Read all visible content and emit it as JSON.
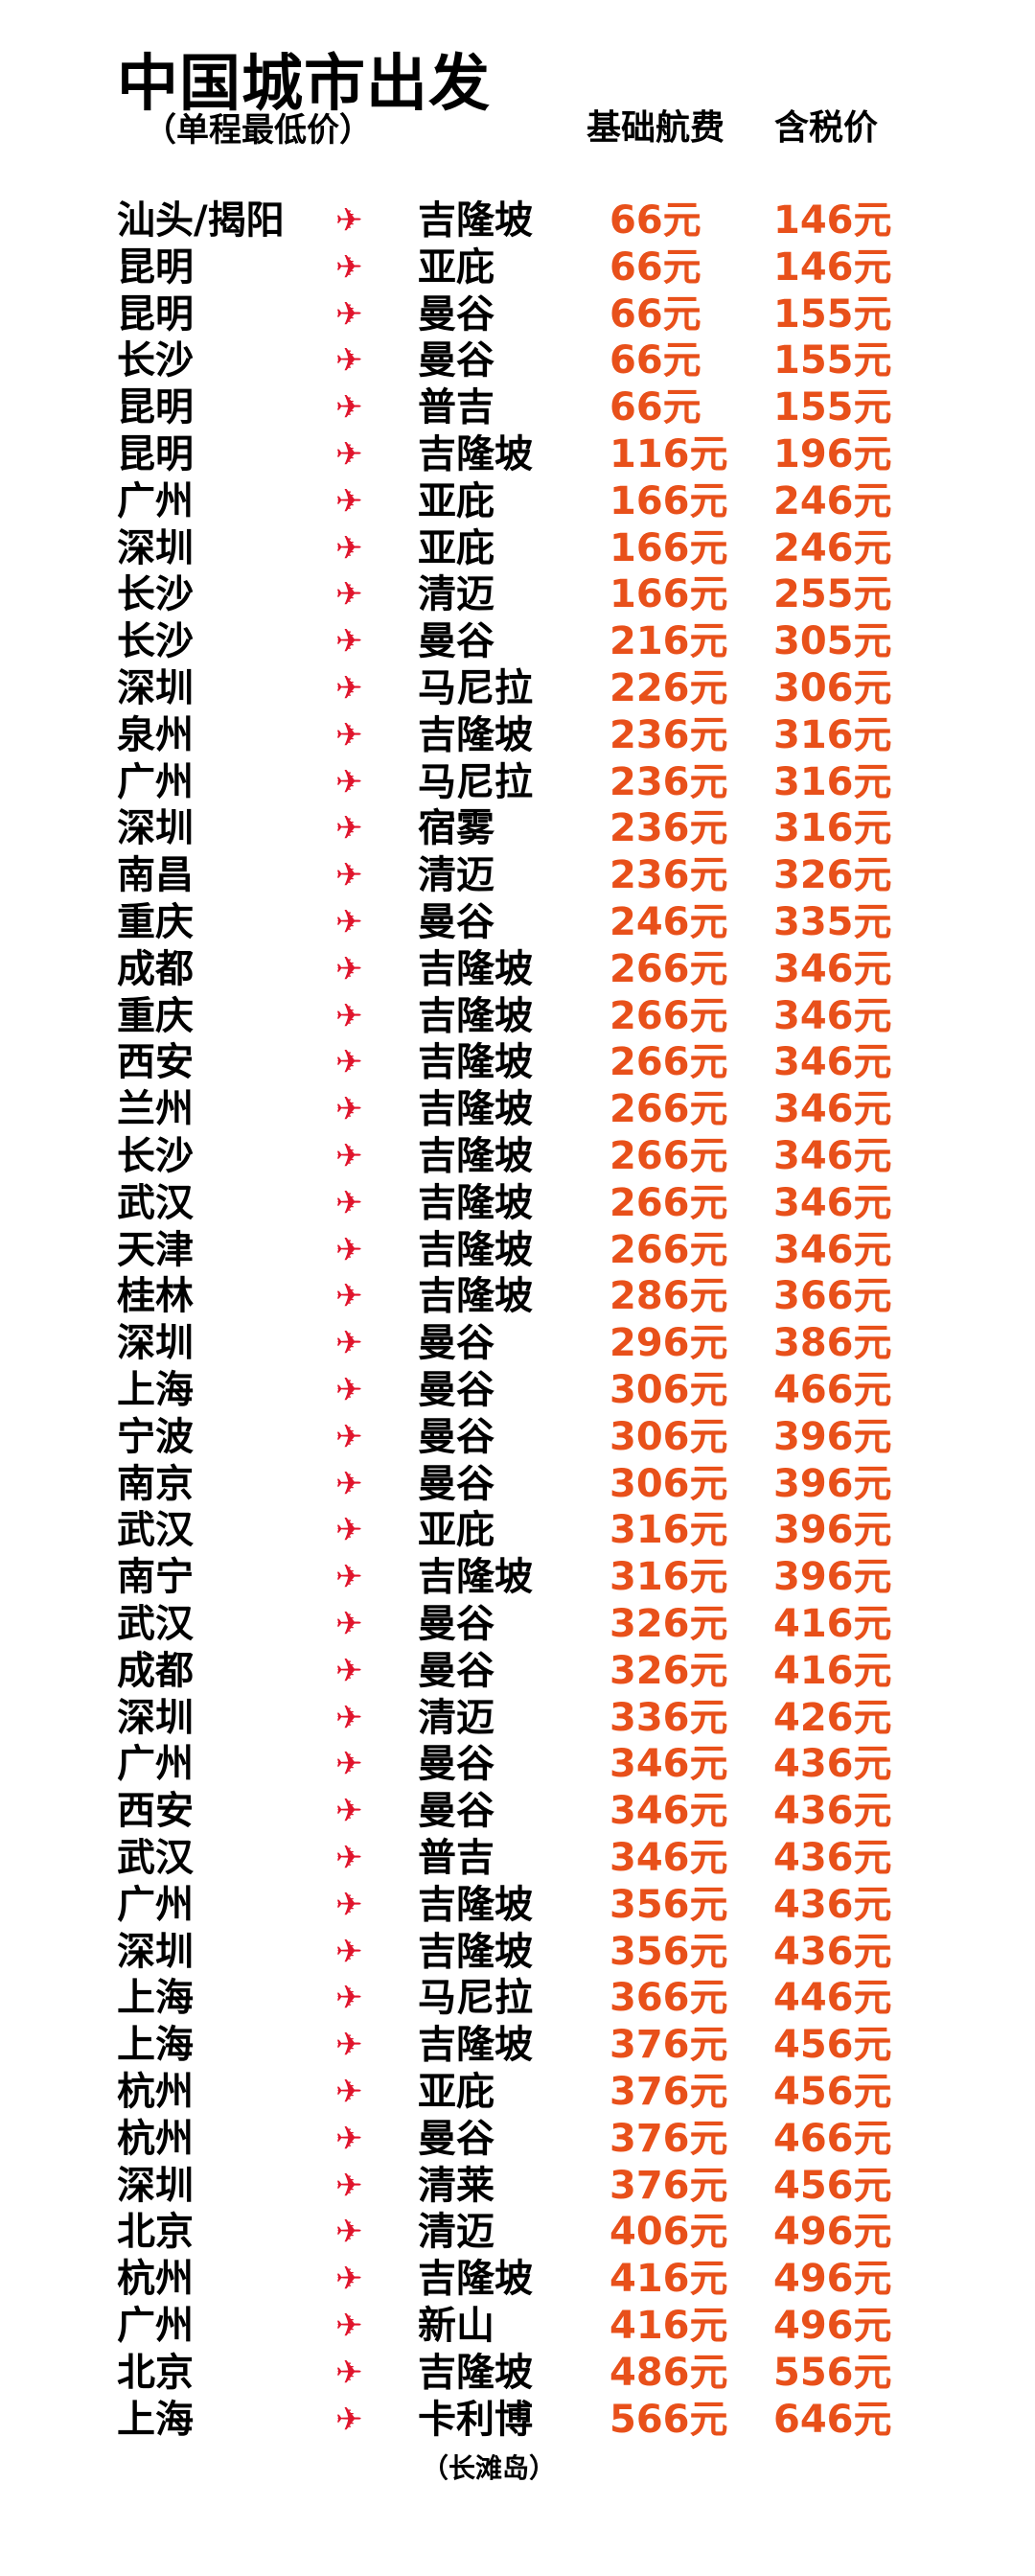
{
  "header": {
    "title": "中国城市出发",
    "subtitle": "（单程最低价）",
    "col_base": "基础航费",
    "col_tax": "含税价"
  },
  "colors": {
    "price": "#e8501a",
    "arrow": "#e0142c"
  },
  "arrow_icon": "airplane-icon",
  "routes": [
    {
      "from": "汕头/揭阳",
      "to": "吉隆坡",
      "base": "66元",
      "tax": "146元"
    },
    {
      "from": "昆明",
      "to": "亚庇",
      "base": "66元",
      "tax": "146元"
    },
    {
      "from": "昆明",
      "to": "曼谷",
      "base": "66元",
      "tax": "155元"
    },
    {
      "from": "长沙",
      "to": "曼谷",
      "base": "66元",
      "tax": "155元"
    },
    {
      "from": "昆明",
      "to": "普吉",
      "base": "66元",
      "tax": "155元"
    },
    {
      "from": "昆明",
      "to": "吉隆坡",
      "base": "116元",
      "tax": "196元"
    },
    {
      "from": "广州",
      "to": "亚庇",
      "base": "166元",
      "tax": "246元"
    },
    {
      "from": "深圳",
      "to": "亚庇",
      "base": "166元",
      "tax": "246元"
    },
    {
      "from": "长沙",
      "to": "清迈",
      "base": "166元",
      "tax": "255元"
    },
    {
      "from": "长沙",
      "to": "曼谷",
      "base": "216元",
      "tax": "305元"
    },
    {
      "from": "深圳",
      "to": "马尼拉",
      "base": "226元",
      "tax": "306元"
    },
    {
      "from": "泉州",
      "to": "吉隆坡",
      "base": "236元",
      "tax": "316元"
    },
    {
      "from": "广州",
      "to": "马尼拉",
      "base": "236元",
      "tax": "316元"
    },
    {
      "from": "深圳",
      "to": "宿雾",
      "base": "236元",
      "tax": "316元"
    },
    {
      "from": "南昌",
      "to": "清迈",
      "base": "236元",
      "tax": "326元"
    },
    {
      "from": "重庆",
      "to": "曼谷",
      "base": "246元",
      "tax": "335元"
    },
    {
      "from": "成都",
      "to": "吉隆坡",
      "base": "266元",
      "tax": "346元"
    },
    {
      "from": "重庆",
      "to": "吉隆坡",
      "base": "266元",
      "tax": "346元"
    },
    {
      "from": "西安",
      "to": "吉隆坡",
      "base": "266元",
      "tax": "346元"
    },
    {
      "from": "兰州",
      "to": "吉隆坡",
      "base": "266元",
      "tax": "346元"
    },
    {
      "from": "长沙",
      "to": "吉隆坡",
      "base": "266元",
      "tax": "346元"
    },
    {
      "from": "武汉",
      "to": "吉隆坡",
      "base": "266元",
      "tax": "346元"
    },
    {
      "from": "天津",
      "to": "吉隆坡",
      "base": "266元",
      "tax": "346元"
    },
    {
      "from": "桂林",
      "to": "吉隆坡",
      "base": "286元",
      "tax": "366元"
    },
    {
      "from": "深圳",
      "to": "曼谷",
      "base": "296元",
      "tax": "386元"
    },
    {
      "from": "上海",
      "to": "曼谷",
      "base": "306元",
      "tax": "466元"
    },
    {
      "from": "宁波",
      "to": "曼谷",
      "base": "306元",
      "tax": "396元"
    },
    {
      "from": "南京",
      "to": "曼谷",
      "base": "306元",
      "tax": "396元"
    },
    {
      "from": "武汉",
      "to": "亚庇",
      "base": "316元",
      "tax": "396元"
    },
    {
      "from": "南宁",
      "to": "吉隆坡",
      "base": "316元",
      "tax": "396元"
    },
    {
      "from": "武汉",
      "to": "曼谷",
      "base": "326元",
      "tax": "416元"
    },
    {
      "from": "成都",
      "to": "曼谷",
      "base": "326元",
      "tax": "416元"
    },
    {
      "from": "深圳",
      "to": "清迈",
      "base": "336元",
      "tax": "426元"
    },
    {
      "from": "广州",
      "to": "曼谷",
      "base": "346元",
      "tax": "436元"
    },
    {
      "from": "西安",
      "to": "曼谷",
      "base": "346元",
      "tax": "436元"
    },
    {
      "from": "武汉",
      "to": "普吉",
      "base": "346元",
      "tax": "436元"
    },
    {
      "from": "广州",
      "to": "吉隆坡",
      "base": "356元",
      "tax": "436元"
    },
    {
      "from": "深圳",
      "to": "吉隆坡",
      "base": "356元",
      "tax": "436元"
    },
    {
      "from": "上海",
      "to": "马尼拉",
      "base": "366元",
      "tax": "446元"
    },
    {
      "from": "上海",
      "to": "吉隆坡",
      "base": "376元",
      "tax": "456元"
    },
    {
      "from": "杭州",
      "to": "亚庇",
      "base": "376元",
      "tax": "456元"
    },
    {
      "from": "杭州",
      "to": "曼谷",
      "base": "376元",
      "tax": "466元"
    },
    {
      "from": "深圳",
      "to": "清莱",
      "base": "376元",
      "tax": "456元"
    },
    {
      "from": "北京",
      "to": "清迈",
      "base": "406元",
      "tax": "496元"
    },
    {
      "from": "杭州",
      "to": "吉隆坡",
      "base": "416元",
      "tax": "496元"
    },
    {
      "from": "广州",
      "to": "新山",
      "base": "416元",
      "tax": "496元"
    },
    {
      "from": "北京",
      "to": "吉隆坡",
      "base": "486元",
      "tax": "556元"
    },
    {
      "from": "上海",
      "to": "卡利博",
      "base": "566元",
      "tax": "646元"
    }
  ],
  "footnote": "（长滩岛）"
}
